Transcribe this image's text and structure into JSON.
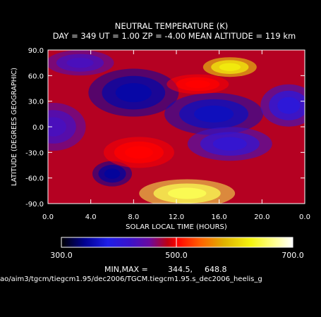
{
  "chart_data": {
    "type": "heatmap",
    "title": "NEUTRAL TEMPERATURE (K)",
    "subtitle": "DAY = 349   UT =   1.00   ZP =   -4.00   MEAN ALTITUDE = 119 km",
    "xlabel": "SOLAR LOCAL TIME (HOURS)",
    "ylabel": "LATITUDE (DEGREES GEOGRAPHIC)",
    "x_ticks": [
      "0.0",
      "4.0",
      "8.0",
      "12.0",
      "16.0",
      "20.0",
      "0.0"
    ],
    "y_ticks": [
      "90.0",
      "60.0",
      "30.0",
      "0.0",
      "-30.0",
      "-60.0",
      "-90.0"
    ],
    "xlim": [
      0,
      24
    ],
    "ylim": [
      -90,
      90
    ],
    "colorbar": {
      "min": 300.0,
      "max": 700.0,
      "tick_labels": [
        "300.0",
        "500.0",
        "700.0"
      ]
    },
    "minmax_label": "MIN,MAX =",
    "min_value": "344.5,",
    "max_value": "648.8",
    "footer_path": "ao/aim3/tgcm/tiegcm1.95/dec2006/TGCM.tiegcm1.95.s_dec2006_heelis_g",
    "features": [
      {
        "lt": 0.5,
        "lat": 0,
        "value": 430
      },
      {
        "lt": 6.0,
        "lat": -55,
        "value": 345
      },
      {
        "lt": 8.0,
        "lat": 40,
        "value": 350
      },
      {
        "lt": 15.5,
        "lat": 15,
        "value": 360
      },
      {
        "lt": 17.0,
        "lat": -20,
        "value": 410
      },
      {
        "lt": 22.5,
        "lat": 25,
        "value": 400
      },
      {
        "lt": 3.0,
        "lat": 75,
        "value": 430
      },
      {
        "lt": 17.0,
        "lat": 70,
        "value": 620
      },
      {
        "lt": 13.0,
        "lat": -78,
        "value": 648.8
      },
      {
        "lt": 8.5,
        "lat": -30,
        "value": 500
      },
      {
        "lt": 14.0,
        "lat": 50,
        "value": 500
      }
    ]
  }
}
